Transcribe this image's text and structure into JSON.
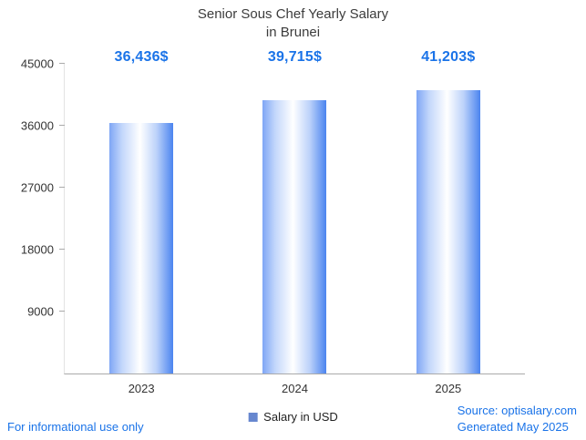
{
  "title": {
    "line1": "Senior Sous Chef Yearly Salary",
    "line2": "in Brunei"
  },
  "chart_data": {
    "type": "bar",
    "title": "Senior Sous Chef Yearly Salary in Brunei",
    "categories": [
      "2023",
      "2024",
      "2025"
    ],
    "values": [
      36436,
      39715,
      41203
    ],
    "value_labels": [
      "36,436$",
      "39,715$",
      "41,203$"
    ],
    "series_name": "Salary in USD",
    "xlabel": "",
    "ylabel": "",
    "ylim": [
      0,
      45000
    ],
    "yticks": [
      9000,
      18000,
      27000,
      36000,
      45000
    ],
    "grid": false,
    "legend": [
      "Salary in USD"
    ],
    "legend_position": "bottom"
  },
  "footer": {
    "disclaimer": "For informational use only",
    "source": "Source: optisalary.com",
    "generated": "Generated May 2025"
  },
  "colors": {
    "accent": "#1a73e8",
    "bar_edge_left": "#7fa6f5",
    "bar_center": "#ffffff",
    "bar_edge_right": "#4b84ef",
    "legend_swatch": "#6787cf",
    "title_text": "#3c3c3c",
    "axis_text": "#333333"
  }
}
